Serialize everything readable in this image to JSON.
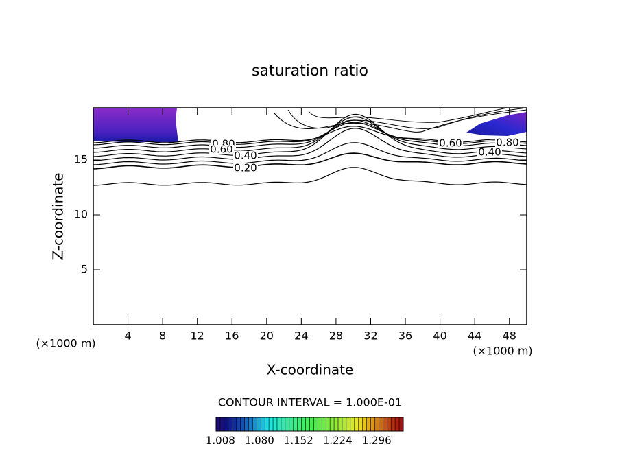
{
  "chart_data": {
    "type": "contour",
    "title": "saturation ratio",
    "xlabel": "X-coordinate",
    "ylabel": "Z-coordinate",
    "x_unit": "(×1000 m)",
    "y_unit": "(×1000 m)",
    "xlim": [
      0,
      50
    ],
    "ylim": [
      0,
      19.75
    ],
    "xticks": [
      4,
      8,
      12,
      16,
      20,
      24,
      28,
      32,
      36,
      40,
      44,
      48
    ],
    "yticks": [
      5,
      10,
      15
    ],
    "contour_interval_label": "CONTOUR INTERVAL = 1.000E-01",
    "contour_labels": [
      {
        "value": 0.8,
        "label": "0.80"
      },
      {
        "value": 0.6,
        "label": "0.60"
      },
      {
        "value": 0.4,
        "label": "0.40"
      },
      {
        "value": 0.2,
        "label": "0.20"
      },
      {
        "value": 0.6,
        "label": "0.60"
      },
      {
        "value": 0.8,
        "label": "0.80"
      },
      {
        "value": 0.4,
        "label": "0.40"
      }
    ],
    "colorbar": {
      "lim": [
        1.0,
        1.345
      ],
      "ticks": [
        1.008,
        {
          "value": 1.08,
          "label": "1.080"
        },
        1.152,
        1.224,
        1.296
      ]
    }
  }
}
